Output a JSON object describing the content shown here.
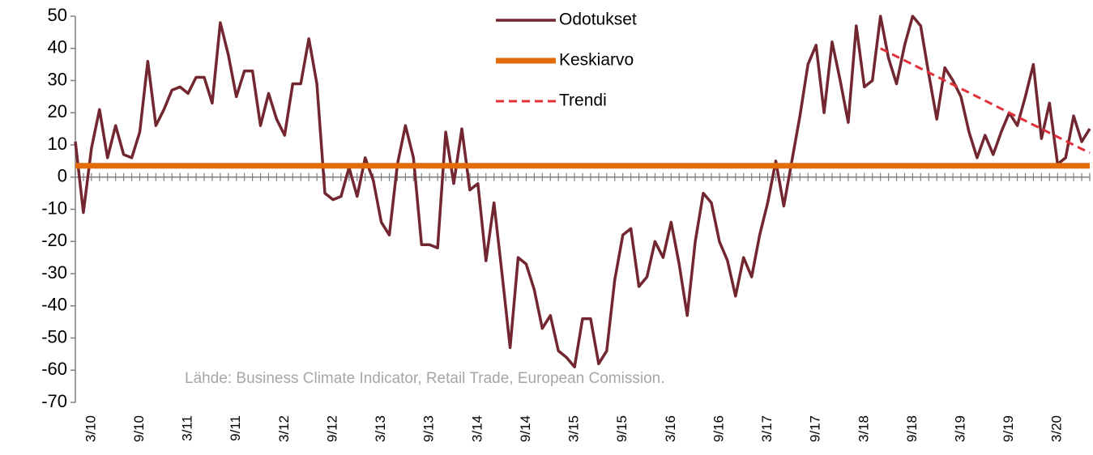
{
  "chart_data": {
    "type": "line",
    "source": "Lähde: Business Climate Indicator, Retail Trade, European Comission.",
    "categories": [
      null,
      null,
      "3/10",
      null,
      null,
      null,
      null,
      null,
      "9/10",
      null,
      null,
      null,
      null,
      null,
      "3/11",
      null,
      null,
      null,
      null,
      null,
      "9/11",
      null,
      null,
      null,
      null,
      null,
      "3/12",
      null,
      null,
      null,
      null,
      null,
      "9/12",
      null,
      null,
      null,
      null,
      null,
      "3/13",
      null,
      null,
      null,
      null,
      null,
      "9/13",
      null,
      null,
      null,
      null,
      null,
      "3/14",
      null,
      null,
      null,
      null,
      null,
      "9/14",
      null,
      null,
      null,
      null,
      null,
      "3/15",
      null,
      null,
      null,
      null,
      null,
      "9/15",
      null,
      null,
      null,
      null,
      null,
      "3/16",
      null,
      null,
      null,
      null,
      null,
      "9/16",
      null,
      null,
      null,
      null,
      null,
      "3/17",
      null,
      null,
      null,
      null,
      null,
      "9/17",
      null,
      null,
      null,
      null,
      null,
      "3/18",
      null,
      null,
      null,
      null,
      null,
      "9/18",
      null,
      null,
      null,
      null,
      null,
      "3/19",
      null,
      null,
      null,
      null,
      null,
      "9/19",
      null,
      null,
      null,
      null,
      null,
      "3/20",
      null,
      null,
      null,
      null
    ],
    "series": [
      {
        "name": "Odotukset",
        "color": "#722630",
        "style": "solid",
        "values": [
          11,
          -11,
          9,
          21,
          6,
          16,
          7,
          6,
          14,
          36,
          16,
          21,
          27,
          28,
          26,
          31,
          31,
          23,
          48,
          38,
          25,
          33,
          33,
          16,
          26,
          18,
          13,
          29,
          29,
          43,
          29,
          -5,
          -7,
          -6,
          3,
          -6,
          6,
          -1,
          -14,
          -18,
          4,
          16,
          6,
          -21,
          -21,
          -22,
          14,
          -2,
          15,
          -4,
          -2,
          -26,
          -8,
          -30,
          -53,
          -25,
          -27,
          -35,
          -47,
          -43,
          -54,
          -56,
          -59,
          -44,
          -44,
          -58,
          -54,
          -32,
          -18,
          -16,
          -34,
          -31,
          -20,
          -25,
          -14,
          -27,
          -43,
          -20,
          -5,
          -8,
          -20,
          -26,
          -37,
          -25,
          -31,
          -18,
          -8,
          5,
          -9,
          5,
          19,
          35,
          41,
          20,
          42,
          30,
          17,
          47,
          28,
          30,
          50,
          37,
          29,
          41,
          50,
          47,
          32,
          18,
          34,
          30,
          25,
          14,
          6,
          13,
          7,
          14,
          20,
          16,
          25,
          35,
          12,
          23,
          4,
          6,
          19,
          11,
          15
        ]
      },
      {
        "name": "Keskiarvo",
        "color": "#e36c0a",
        "style": "solid",
        "values": [
          3.5,
          3.5,
          3.5,
          3.5,
          3.5,
          3.5,
          3.5,
          3.5,
          3.5,
          3.5,
          3.5,
          3.5,
          3.5,
          3.5,
          3.5,
          3.5,
          3.5,
          3.5,
          3.5,
          3.5,
          3.5,
          3.5,
          3.5,
          3.5,
          3.5,
          3.5,
          3.5,
          3.5,
          3.5,
          3.5,
          3.5,
          3.5,
          3.5,
          3.5,
          3.5,
          3.5,
          3.5,
          3.5,
          3.5,
          3.5,
          3.5,
          3.5,
          3.5,
          3.5,
          3.5,
          3.5,
          3.5,
          3.5,
          3.5,
          3.5,
          3.5,
          3.5,
          3.5,
          3.5,
          3.5,
          3.5,
          3.5,
          3.5,
          3.5,
          3.5,
          3.5,
          3.5,
          3.5,
          3.5,
          3.5,
          3.5,
          3.5,
          3.5,
          3.5,
          3.5,
          3.5,
          3.5,
          3.5,
          3.5,
          3.5,
          3.5,
          3.5,
          3.5,
          3.5,
          3.5,
          3.5,
          3.5,
          3.5,
          3.5,
          3.5,
          3.5,
          3.5,
          3.5,
          3.5,
          3.5,
          3.5,
          3.5,
          3.5,
          3.5,
          3.5,
          3.5,
          3.5,
          3.5,
          3.5,
          3.5,
          3.5,
          3.5,
          3.5,
          3.5,
          3.5,
          3.5,
          3.5,
          3.5,
          3.5,
          3.5,
          3.5,
          3.5,
          3.5,
          3.5,
          3.5,
          3.5,
          3.5,
          3.5,
          3.5,
          3.5,
          3.5,
          3.5,
          3.5,
          3.5,
          3.5,
          3.5,
          3.5
        ]
      },
      {
        "name": "Trendi",
        "color": "#e0303a",
        "style": "dashed",
        "values": [
          null,
          null,
          null,
          null,
          null,
          null,
          null,
          null,
          null,
          null,
          null,
          null,
          null,
          null,
          null,
          null,
          null,
          null,
          null,
          null,
          null,
          null,
          null,
          null,
          null,
          null,
          null,
          null,
          null,
          null,
          null,
          null,
          null,
          null,
          null,
          null,
          null,
          null,
          null,
          null,
          null,
          null,
          null,
          null,
          null,
          null,
          null,
          null,
          null,
          null,
          null,
          null,
          null,
          null,
          null,
          null,
          null,
          null,
          null,
          null,
          null,
          null,
          null,
          null,
          null,
          null,
          null,
          null,
          null,
          null,
          null,
          null,
          null,
          null,
          null,
          null,
          null,
          null,
          null,
          null,
          null,
          null,
          null,
          null,
          null,
          null,
          null,
          null,
          null,
          null,
          null,
          null,
          null,
          null,
          null,
          null,
          null,
          null,
          null,
          null,
          40,
          38.75,
          37.5,
          36.25,
          35,
          33.75,
          32.5,
          31.25,
          30,
          28.75,
          27.5,
          26.25,
          25,
          23.75,
          22.5,
          21.25,
          20,
          18.75,
          17.5,
          16.25,
          15,
          13.75,
          12.5,
          11.25,
          10,
          8.75,
          7.5
        ]
      }
    ],
    "ylim": [
      -70,
      50
    ],
    "yticks": [
      -70,
      -60,
      -50,
      -40,
      -30,
      -20,
      -10,
      0,
      10,
      20,
      30,
      40,
      50
    ]
  }
}
